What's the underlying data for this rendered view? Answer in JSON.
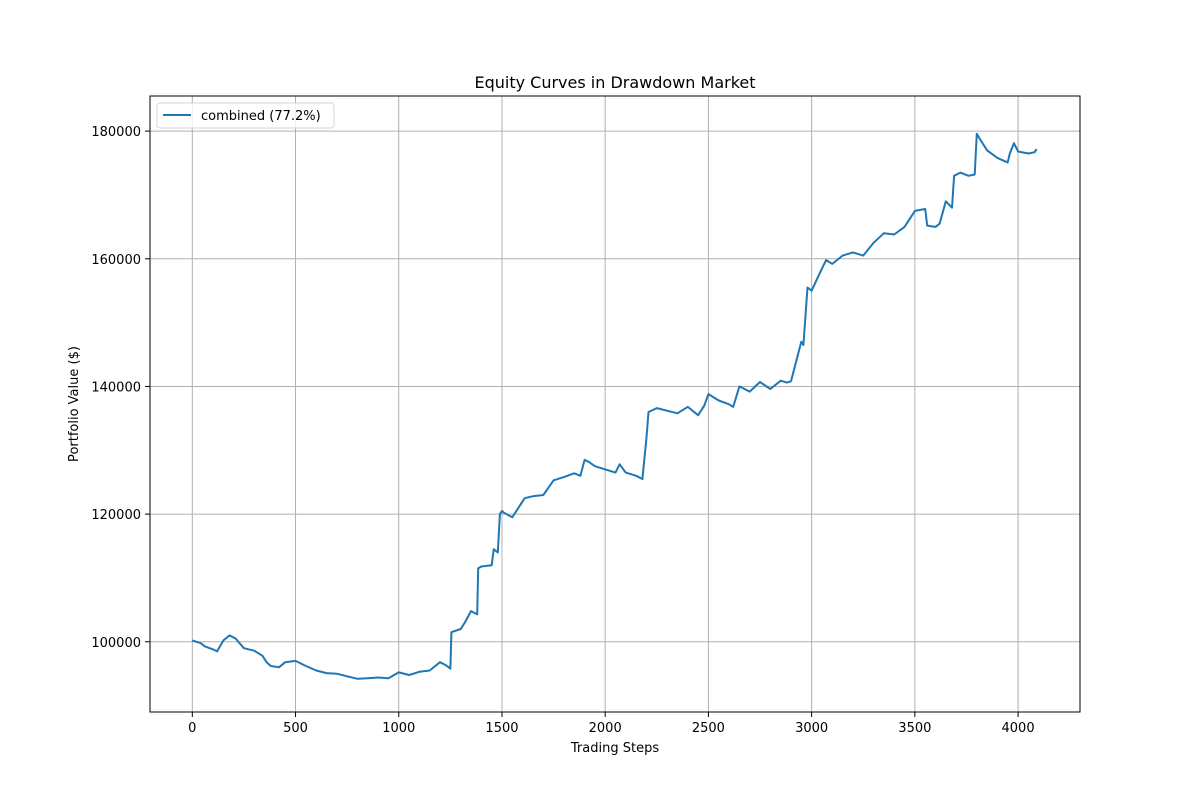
{
  "chart_data": {
    "type": "line",
    "title": "Equity Curves in Drawdown Market",
    "xlabel": "Trading Steps",
    "ylabel": "Portfolio Value ($)",
    "xlim": [
      -205,
      4300
    ],
    "ylim": [
      89000,
      185500
    ],
    "xticks": [
      0,
      500,
      1000,
      1500,
      2000,
      2500,
      3000,
      3500,
      4000
    ],
    "xtick_labels": [
      "0",
      "500",
      "1000",
      "1500",
      "2000",
      "2500",
      "3000",
      "3500",
      "4000"
    ],
    "yticks": [
      100000,
      120000,
      140000,
      160000,
      180000
    ],
    "ytick_labels": [
      "100000",
      "120000",
      "140000",
      "160000",
      "180000"
    ],
    "grid": true,
    "legend_position": "top-left",
    "colors": {
      "combined": "#1f77b4"
    },
    "series": [
      {
        "name": "combined (77.2%)",
        "x": [
          0,
          40,
          60,
          100,
          120,
          150,
          180,
          210,
          250,
          300,
          340,
          360,
          380,
          420,
          450,
          500,
          550,
          600,
          650,
          700,
          750,
          800,
          850,
          900,
          950,
          1000,
          1050,
          1100,
          1150,
          1200,
          1230,
          1250,
          1255,
          1300,
          1320,
          1350,
          1380,
          1385,
          1400,
          1450,
          1460,
          1480,
          1490,
          1500,
          1510,
          1550,
          1600,
          1610,
          1650,
          1700,
          1750,
          1800,
          1850,
          1880,
          1900,
          1920,
          1950,
          2000,
          2050,
          2070,
          2100,
          2150,
          2180,
          2200,
          2210,
          2250,
          2300,
          2350,
          2400,
          2450,
          2480,
          2500,
          2550,
          2600,
          2620,
          2650,
          2700,
          2750,
          2800,
          2850,
          2880,
          2900,
          2950,
          2960,
          2980,
          3000,
          3050,
          3070,
          3100,
          3150,
          3200,
          3250,
          3300,
          3350,
          3400,
          3450,
          3500,
          3550,
          3560,
          3600,
          3620,
          3650,
          3680,
          3690,
          3720,
          3760,
          3790,
          3800,
          3820,
          3850,
          3900,
          3950,
          3960,
          3980,
          4000,
          4050,
          4080,
          4090
        ],
        "y": [
          100200,
          99800,
          99300,
          98800,
          98500,
          100200,
          101000,
          100500,
          99000,
          98600,
          97800,
          96800,
          96200,
          96000,
          96800,
          97000,
          96200,
          95500,
          95100,
          95000,
          94600,
          94200,
          94300,
          94400,
          94300,
          95200,
          94800,
          95300,
          95500,
          96800,
          96300,
          95800,
          101500,
          102000,
          103000,
          104800,
          104300,
          111500,
          111800,
          112000,
          114500,
          114000,
          120000,
          120500,
          120200,
          119500,
          122000,
          122500,
          122800,
          123000,
          125300,
          125800,
          126400,
          126000,
          128500,
          128200,
          127500,
          127000,
          126500,
          127800,
          126500,
          126000,
          125500,
          132000,
          136000,
          136600,
          136200,
          135800,
          136800,
          135500,
          137000,
          138800,
          137800,
          137200,
          136800,
          140000,
          139200,
          140700,
          139600,
          140900,
          140600,
          140800,
          147000,
          146500,
          155500,
          155000,
          158500,
          159800,
          159200,
          160500,
          161000,
          160500,
          162500,
          164000,
          163800,
          165000,
          167500,
          167800,
          165200,
          165000,
          165500,
          169000,
          168000,
          173000,
          173500,
          173000,
          173200,
          179600,
          178500,
          177000,
          175800,
          175100,
          176500,
          178100,
          176800,
          176500,
          176700,
          177200
        ]
      }
    ]
  }
}
